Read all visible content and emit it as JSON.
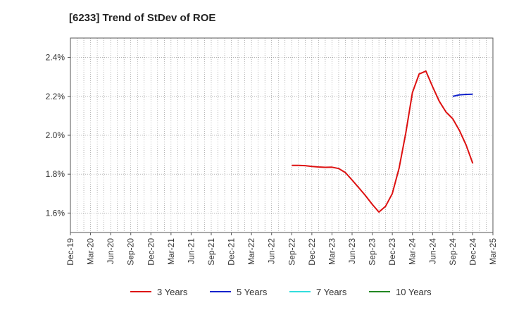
{
  "chart_data": {
    "type": "line",
    "title": "[6233]  Trend of StDev of ROE",
    "xlabel": "",
    "ylabel": "",
    "x_ticks": [
      "Dec-19",
      "Mar-20",
      "Jun-20",
      "Sep-20",
      "Dec-20",
      "Mar-21",
      "Jun-21",
      "Sep-21",
      "Dec-21",
      "Mar-22",
      "Jun-22",
      "Sep-22",
      "Dec-22",
      "Mar-23",
      "Jun-23",
      "Sep-23",
      "Dec-23",
      "Mar-24",
      "Jun-24",
      "Sep-24",
      "Dec-24",
      "Mar-25"
    ],
    "y_ticks": [
      1.6,
      1.8,
      2.0,
      2.2,
      2.4
    ],
    "y_tick_labels": [
      "1.6%",
      "1.8%",
      "2.0%",
      "2.2%",
      "2.4%"
    ],
    "ylim": [
      1.5,
      2.5
    ],
    "grid": true,
    "legend_position": "bottom",
    "series": [
      {
        "name": "3 Years",
        "color": "#dd1111",
        "x": [
          "Sep-22",
          "Oct-22",
          "Nov-22",
          "Dec-22",
          "Jan-23",
          "Feb-23",
          "Mar-23",
          "Apr-23",
          "May-23",
          "Jun-23",
          "Jul-23",
          "Aug-23",
          "Sep-23",
          "Oct-23",
          "Nov-23",
          "Dec-23",
          "Jan-24",
          "Feb-24",
          "Mar-24",
          "Apr-24",
          "May-24",
          "Jun-24",
          "Jul-24",
          "Aug-24",
          "Sep-24",
          "Oct-24",
          "Nov-24",
          "Dec-24"
        ],
        "values": [
          1.845,
          1.845,
          1.844,
          1.84,
          1.837,
          1.835,
          1.836,
          1.829,
          1.808,
          1.77,
          1.73,
          1.69,
          1.645,
          1.605,
          1.635,
          1.7,
          1.83,
          2.01,
          2.22,
          2.315,
          2.33,
          2.25,
          2.175,
          2.12,
          2.085,
          2.025,
          1.95,
          1.855
        ]
      },
      {
        "name": "5 Years",
        "color": "#1122cc",
        "x": [
          "Sep-24",
          "Oct-24",
          "Nov-24",
          "Dec-24"
        ],
        "values": [
          2.2,
          2.208,
          2.21,
          2.211
        ]
      },
      {
        "name": "7 Years",
        "color": "#33dddd",
        "x": [],
        "values": []
      },
      {
        "name": "10 Years",
        "color": "#228822",
        "x": [],
        "values": []
      }
    ]
  }
}
